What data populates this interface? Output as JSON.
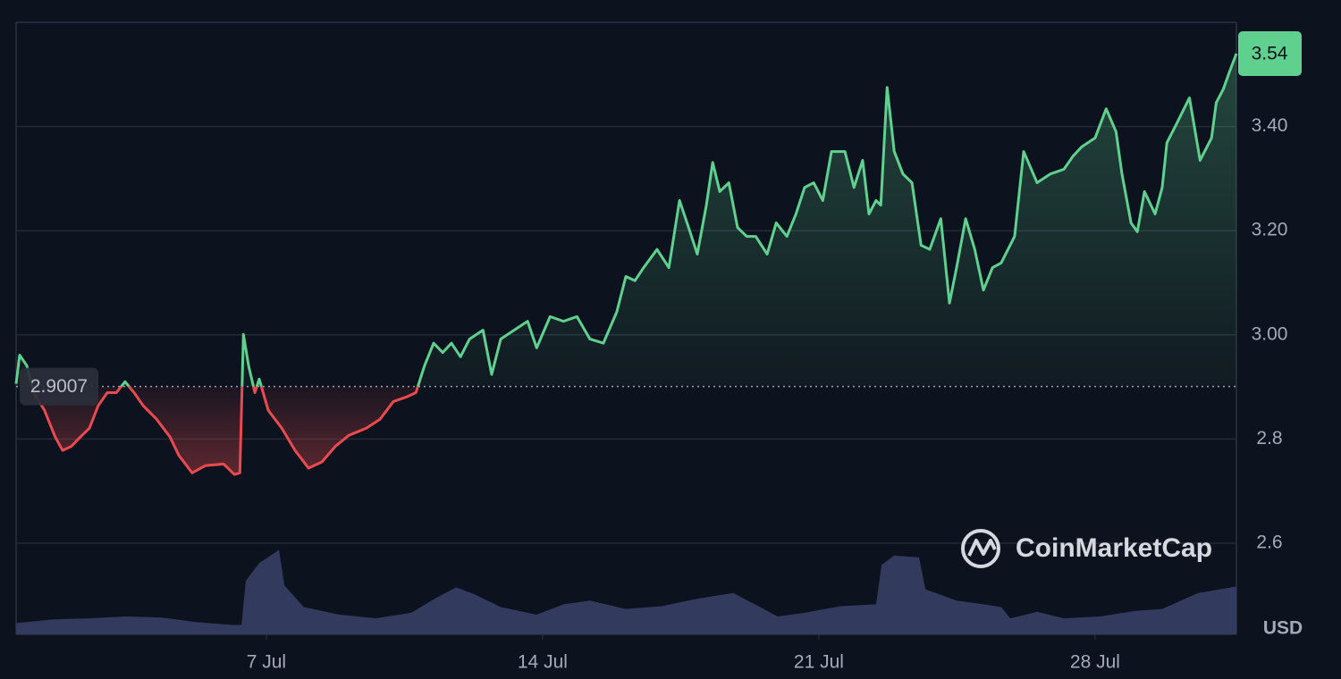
{
  "chart_data": {
    "type": "line",
    "x": [
      0.66,
      0.75,
      0.93,
      1.11,
      1.38,
      1.65,
      1.84,
      2.06,
      2.29,
      2.52,
      2.74,
      2.97,
      3.2,
      3.42,
      3.65,
      3.88,
      4.22,
      4.56,
      4.78,
      5.12,
      5.46,
      5.92,
      6.19,
      6.33,
      6.42,
      6.55,
      6.71,
      6.82,
      7.05,
      7.39,
      7.73,
      8.07,
      8.41,
      8.75,
      9.09,
      9.54,
      9.88,
      10.22,
      10.56,
      10.79,
      11.01,
      11.24,
      11.47,
      11.69,
      11.92,
      12.15,
      12.49,
      12.71,
      12.94,
      13.28,
      13.62,
      13.85,
      14.19,
      14.53,
      14.87,
      15.2,
      15.54,
      15.88,
      16.11,
      16.34,
      16.56,
      16.9,
      17.2,
      17.47,
      17.7,
      17.92,
      18.15,
      18.31,
      18.49,
      18.72,
      18.94,
      19.17,
      19.4,
      19.69,
      19.92,
      20.19,
      20.42,
      20.64,
      20.87,
      21.1,
      21.32,
      21.66,
      21.89,
      22.11,
      22.27,
      22.45,
      22.57,
      22.73,
      22.91,
      23.13,
      23.36,
      23.59,
      23.81,
      24.09,
      24.31,
      24.49,
      24.72,
      24.95,
      25.17,
      25.4,
      25.62,
      25.96,
      26.19,
      26.53,
      26.87,
      27.21,
      27.44,
      27.66,
      28.0,
      28.28,
      28.53,
      28.68,
      28.91,
      29.07,
      29.25,
      29.52,
      29.7,
      29.82,
      30.05,
      30.39,
      30.66,
      30.95,
      31.07,
      31.25,
      31.41,
      31.58
    ],
    "values": [
      2.906,
      2.961,
      2.941,
      2.889,
      2.855,
      2.804,
      2.778,
      2.786,
      2.804,
      2.821,
      2.864,
      2.889,
      2.889,
      2.91,
      2.889,
      2.864,
      2.838,
      2.804,
      2.769,
      2.735,
      2.749,
      2.752,
      2.732,
      2.735,
      3.001,
      2.941,
      2.889,
      2.915,
      2.855,
      2.821,
      2.778,
      2.744,
      2.756,
      2.786,
      2.807,
      2.821,
      2.838,
      2.872,
      2.881,
      2.889,
      2.941,
      2.984,
      2.966,
      2.984,
      2.958,
      2.992,
      3.009,
      2.924,
      2.992,
      3.009,
      3.026,
      2.975,
      3.035,
      3.026,
      3.035,
      2.992,
      2.984,
      3.044,
      3.112,
      3.104,
      3.129,
      3.164,
      3.129,
      3.258,
      3.206,
      3.155,
      3.249,
      3.331,
      3.275,
      3.292,
      3.206,
      3.189,
      3.189,
      3.155,
      3.215,
      3.189,
      3.232,
      3.283,
      3.292,
      3.258,
      3.352,
      3.352,
      3.283,
      3.335,
      3.232,
      3.258,
      3.249,
      3.475,
      3.352,
      3.309,
      3.292,
      3.172,
      3.164,
      3.223,
      3.061,
      3.129,
      3.223,
      3.164,
      3.086,
      3.129,
      3.138,
      3.189,
      3.352,
      3.292,
      3.309,
      3.318,
      3.343,
      3.361,
      3.378,
      3.434,
      3.39,
      3.309,
      3.215,
      3.198,
      3.275,
      3.232,
      3.283,
      3.369,
      3.403,
      3.455,
      3.335,
      3.378,
      3.446,
      3.472,
      3.506,
      3.54
    ],
    "up_color": "#5fd08e",
    "down_color": "#ea4a4f",
    "reference_line": 2.9007,
    "last_value": 3.54,
    "volume": {
      "axis": "y2",
      "color": "#323a5e",
      "x": [
        0.66,
        1.61,
        2.52,
        3.42,
        4.33,
        5.24,
        6.14,
        6.37,
        6.48,
        6.82,
        7.32,
        7.46,
        7.95,
        8.86,
        9.77,
        10.67,
        11.35,
        11.81,
        12.26,
        12.94,
        13.85,
        14.53,
        15.2,
        16.11,
        17.02,
        17.92,
        18.83,
        19.51,
        19.96,
        20.64,
        21.55,
        22.45,
        22.59,
        22.91,
        23.54,
        23.7,
        24.49,
        25.17,
        25.62,
        25.85,
        26.53,
        27.21,
        28.12,
        29.02,
        29.7,
        30.61,
        31.58
      ],
      "values": [
        12,
        16,
        17,
        19,
        18,
        13,
        10,
        10,
        57,
        76,
        90,
        52,
        29,
        21,
        17,
        23,
        40,
        50,
        43,
        29,
        21,
        32,
        36,
        27,
        30,
        38,
        44,
        29,
        19,
        23,
        30,
        32,
        74,
        84,
        82,
        48,
        36,
        32,
        29,
        17,
        24,
        17,
        19,
        25,
        27,
        44,
        51
      ]
    },
    "xlim": [
      0.66,
      31.58
    ],
    "ylim": [
      2.425,
      3.6
    ],
    "y2lim": [
      0,
      100
    ],
    "xticks": [
      {
        "value": 7,
        "label": "7 Jul"
      },
      {
        "value": 14,
        "label": "14 Jul"
      },
      {
        "value": 21,
        "label": "21 Jul"
      },
      {
        "value": 28,
        "label": "28 Jul"
      }
    ],
    "yticks": [
      {
        "value": 3.4,
        "label": "3.40"
      },
      {
        "value": 3.2,
        "label": "3.20"
      },
      {
        "value": 3.0,
        "label": "3.00"
      },
      2.8,
      2.6
    ],
    "grid": true,
    "y_unit": "USD",
    "watermark": "CoinMarketCap"
  }
}
